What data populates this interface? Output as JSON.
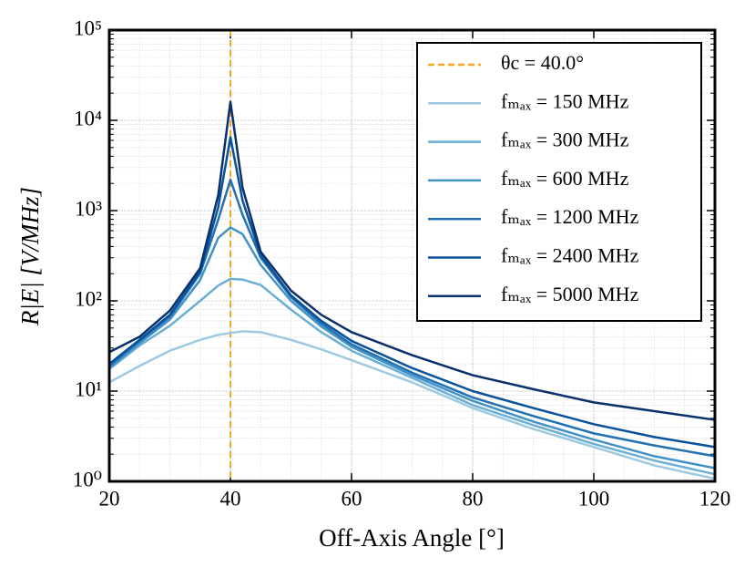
{
  "chart_data": {
    "type": "line",
    "x_label": "Off-Axis Angle [°]",
    "y_label": "R|E| [V/MHz]",
    "yscale": "log",
    "grid": true,
    "legend": "upper right",
    "xlim": [
      20,
      120
    ],
    "xticks": [
      20,
      40,
      60,
      80,
      100,
      120
    ],
    "ylim": [
      1,
      100000
    ],
    "yticks": [
      {
        "value": 1,
        "label": "10⁰"
      },
      {
        "value": 10,
        "label": "10¹"
      },
      {
        "value": 100,
        "label": "10²"
      },
      {
        "value": 1000,
        "label": "10³"
      },
      {
        "value": 10000,
        "label": "10⁴"
      },
      {
        "value": 100000,
        "label": "10⁵"
      }
    ],
    "reference_line": {
      "name": "θc = 40.0°",
      "x": 40,
      "color": "#f5a623"
    },
    "x": [
      20,
      25,
      30,
      35,
      38,
      40,
      42,
      45,
      50,
      55,
      60,
      70,
      80,
      90,
      100,
      110,
      120
    ],
    "series": [
      {
        "name": "fₘₐₓ = 150 MHz",
        "color": "#9ecae1",
        "values": [
          12.5,
          19,
          28,
          37,
          42,
          44,
          46,
          45,
          37,
          29,
          22,
          12.5,
          6.5,
          3.8,
          2.4,
          1.5,
          1.07
        ]
      },
      {
        "name": "fₘₐₓ = 300 MHz",
        "color": "#6baed6",
        "values": [
          17.5,
          32,
          53,
          100,
          148,
          175,
          172,
          150,
          80,
          45,
          28,
          14,
          7,
          4.2,
          2.6,
          1.7,
          1.2
        ]
      },
      {
        "name": "fₘₐₓ = 600 MHz",
        "color": "#4292c6",
        "values": [
          18,
          34,
          62,
          170,
          500,
          650,
          550,
          250,
          100,
          52,
          31,
          15,
          7.8,
          4.6,
          2.9,
          1.9,
          1.4
        ]
      },
      {
        "name": "fₘₐₓ = 1200 MHz",
        "color": "#2171b5",
        "values": [
          19,
          36,
          67,
          200,
          800,
          2200,
          900,
          300,
          110,
          56,
          33,
          16,
          8.5,
          5.3,
          3.4,
          2.5,
          1.9
        ]
      },
      {
        "name": "fₘₐₓ = 2400 MHz",
        "color": "#08519c",
        "values": [
          20,
          37,
          70,
          210,
          1100,
          6500,
          1300,
          320,
          115,
          60,
          36,
          18,
          10,
          6.5,
          4.3,
          3.1,
          2.4
        ]
      },
      {
        "name": "fₘₐₓ = 5000 MHz",
        "color": "#08306b",
        "values": [
          27,
          40,
          78,
          230,
          1500,
          16000,
          1800,
          350,
          130,
          70,
          45,
          25,
          15,
          10.5,
          7.5,
          6,
          4.8
        ]
      }
    ]
  }
}
